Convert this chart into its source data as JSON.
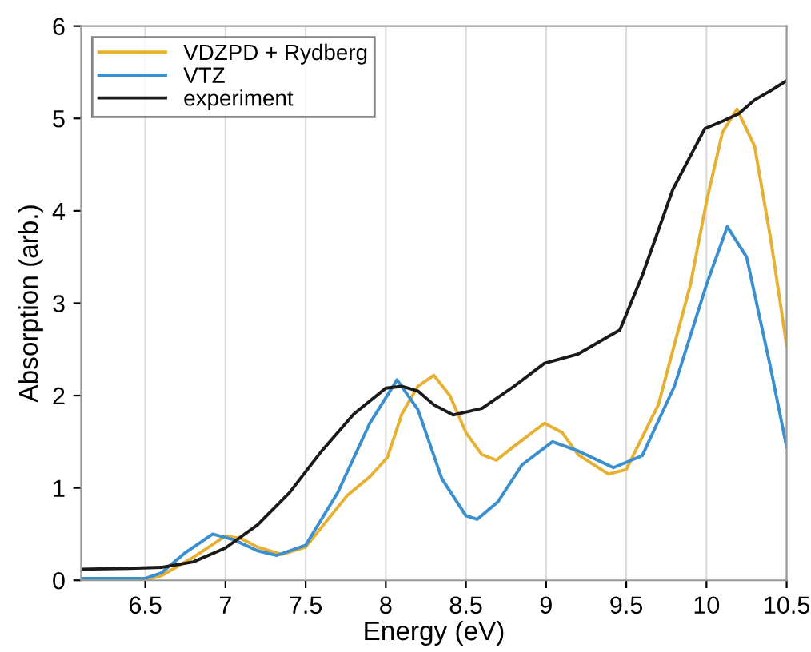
{
  "chart_data": {
    "type": "line",
    "xlabel": "Energy (eV)",
    "ylabel": "Absorption (arb.)",
    "xlim": [
      6.1,
      10.5
    ],
    "xticks": [
      6.5,
      7,
      7.5,
      8,
      8.5,
      9,
      9.5,
      10,
      10.5
    ],
    "ylim": [
      0,
      6
    ],
    "yticks": [
      0,
      1,
      2,
      3,
      4,
      5,
      6
    ],
    "grid": "x",
    "legend": "top left",
    "series": [
      {
        "name": "VDZPD + Rydberg",
        "color": "#e8b030",
        "x": [
          6.1,
          6.5,
          6.6,
          6.8,
          7.0,
          7.1,
          7.2,
          7.35,
          7.5,
          7.76,
          7.9,
          8.01,
          8.1,
          8.2,
          8.3,
          8.4,
          8.5,
          8.6,
          8.69,
          8.8,
          8.99,
          9.1,
          9.2,
          9.39,
          9.5,
          9.7,
          9.9,
          10.0,
          10.1,
          10.19,
          10.3,
          10.4,
          10.5
        ],
        "values": [
          0.0,
          0.0,
          0.05,
          0.25,
          0.48,
          0.45,
          0.36,
          0.28,
          0.36,
          0.92,
          1.12,
          1.33,
          1.8,
          2.1,
          2.22,
          2.0,
          1.6,
          1.36,
          1.3,
          1.45,
          1.7,
          1.6,
          1.36,
          1.15,
          1.2,
          1.9,
          3.2,
          4.1,
          4.85,
          5.1,
          4.7,
          3.7,
          2.54
        ]
      },
      {
        "name": "VTZ",
        "color": "#3a8fd0",
        "x": [
          6.1,
          6.5,
          6.6,
          6.75,
          6.92,
          7.05,
          7.2,
          7.32,
          7.5,
          7.7,
          7.9,
          8.07,
          8.2,
          8.35,
          8.5,
          8.57,
          8.7,
          8.85,
          9.04,
          9.2,
          9.42,
          9.6,
          9.8,
          10.0,
          10.13,
          10.25,
          10.4,
          10.5
        ],
        "values": [
          0.02,
          0.02,
          0.08,
          0.3,
          0.5,
          0.44,
          0.32,
          0.27,
          0.38,
          0.95,
          1.7,
          2.17,
          1.85,
          1.1,
          0.7,
          0.66,
          0.85,
          1.25,
          1.5,
          1.4,
          1.22,
          1.35,
          2.1,
          3.2,
          3.83,
          3.5,
          2.3,
          1.44
        ]
      },
      {
        "name": "experiment",
        "color": "#1a1a1a",
        "x": [
          6.1,
          6.4,
          6.6,
          6.8,
          7.0,
          7.2,
          7.4,
          7.6,
          7.8,
          8.0,
          8.1,
          8.2,
          8.3,
          8.42,
          8.6,
          8.8,
          8.99,
          9.2,
          9.46,
          9.6,
          9.79,
          9.99,
          10.1,
          10.2,
          10.3,
          10.4,
          10.5
        ],
        "values": [
          0.12,
          0.13,
          0.14,
          0.2,
          0.35,
          0.6,
          0.95,
          1.4,
          1.8,
          2.08,
          2.1,
          2.05,
          1.9,
          1.79,
          1.86,
          2.1,
          2.35,
          2.45,
          2.71,
          3.3,
          4.23,
          4.89,
          4.97,
          5.05,
          5.2,
          5.3,
          5.41
        ]
      }
    ]
  }
}
